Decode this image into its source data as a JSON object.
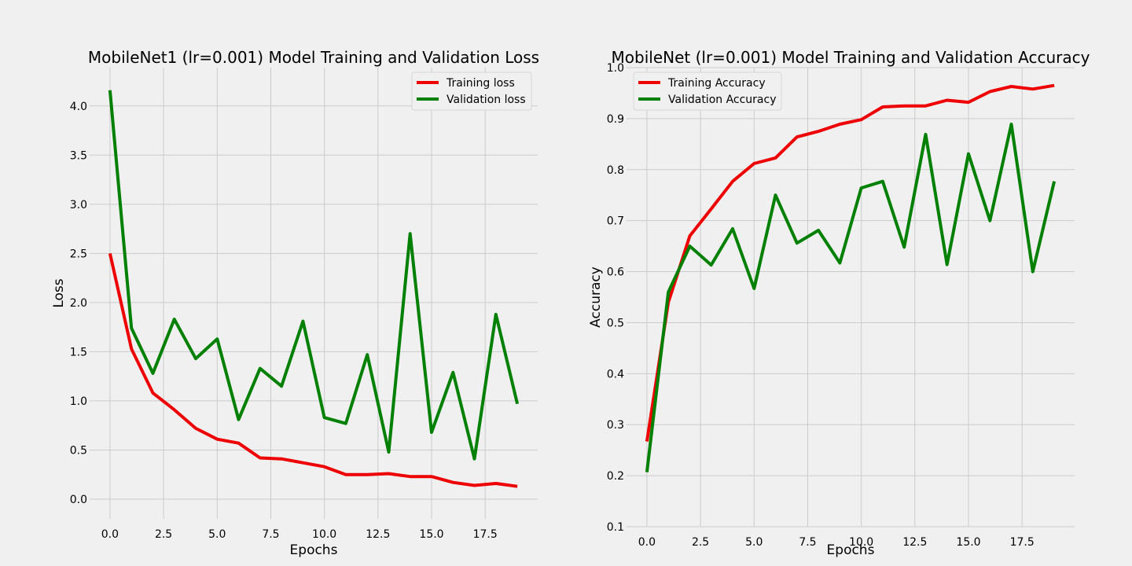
{
  "chart_data": [
    {
      "type": "line",
      "title": "MobileNet1 (lr=0.001) Model Training and Validation Loss",
      "xlabel": "Epochs",
      "ylabel": "Loss",
      "xlim": [
        -0.95,
        19.95
      ],
      "ylim": [
        -0.2,
        4.39
      ],
      "xticks": [
        0,
        2.5,
        5,
        7.5,
        10,
        12.5,
        15,
        17.5
      ],
      "xtick_labels": [
        "0.0",
        "2.5",
        "5.0",
        "7.5",
        "10.0",
        "12.5",
        "15.0",
        "17.5"
      ],
      "yticks": [
        0,
        0.5,
        1,
        1.5,
        2,
        2.5,
        3,
        3.5,
        4
      ],
      "ytick_labels": [
        "0.0",
        "0.5",
        "1.0",
        "1.5",
        "2.0",
        "2.5",
        "3.0",
        "3.5",
        "4.0"
      ],
      "grid": true,
      "legend": "upper-right",
      "x": [
        0,
        1,
        2,
        3,
        4,
        5,
        6,
        7,
        8,
        9,
        10,
        11,
        12,
        13,
        14,
        15,
        16,
        17,
        18,
        19
      ],
      "series": [
        {
          "name": "Training loss",
          "color": "#ee0000",
          "values": [
            2.5,
            1.53,
            1.08,
            0.91,
            0.72,
            0.61,
            0.57,
            0.42,
            0.41,
            0.37,
            0.33,
            0.25,
            0.25,
            0.26,
            0.23,
            0.23,
            0.17,
            0.14,
            0.16,
            0.13
          ]
        },
        {
          "name": "Validation loss",
          "color": "#008000",
          "values": [
            4.16,
            1.74,
            1.28,
            1.83,
            1.43,
            1.63,
            0.81,
            1.33,
            1.15,
            1.81,
            0.83,
            0.77,
            1.47,
            0.48,
            2.7,
            0.68,
            1.29,
            0.41,
            1.88,
            0.97
          ]
        }
      ]
    },
    {
      "type": "line",
      "title": "MobileNet (lr=0.001) Model Training and Validation Accuracy",
      "xlabel": "Epochs",
      "ylabel": "Accuracy",
      "xlim": [
        -0.95,
        19.95
      ],
      "ylim": [
        0.1,
        1.0
      ],
      "xticks": [
        0,
        2.5,
        5,
        7.5,
        10,
        12.5,
        15,
        17.5
      ],
      "xtick_labels": [
        "0.0",
        "2.5",
        "5.0",
        "7.5",
        "10.0",
        "12.5",
        "15.0",
        "17.5"
      ],
      "yticks": [
        0.1,
        0.2,
        0.3,
        0.4,
        0.5,
        0.6,
        0.7,
        0.8,
        0.9,
        1.0
      ],
      "ytick_labels": [
        "0.1",
        "0.2",
        "0.3",
        "0.4",
        "0.5",
        "0.6",
        "0.7",
        "0.8",
        "0.9",
        "1.0"
      ],
      "grid": true,
      "legend": "upper-left",
      "x": [
        0,
        1,
        2,
        3,
        4,
        5,
        6,
        7,
        8,
        9,
        10,
        11,
        12,
        13,
        14,
        15,
        16,
        17,
        18,
        19
      ],
      "series": [
        {
          "name": "Training Accuracy",
          "color": "#ee0000",
          "values": [
            0.267,
            0.54,
            0.67,
            0.723,
            0.777,
            0.812,
            0.823,
            0.864,
            0.875,
            0.889,
            0.898,
            0.923,
            0.925,
            0.925,
            0.936,
            0.932,
            0.953,
            0.963,
            0.958,
            0.965
          ]
        },
        {
          "name": "Validation Accuracy",
          "color": "#008000",
          "values": [
            0.207,
            0.56,
            0.65,
            0.613,
            0.684,
            0.567,
            0.75,
            0.656,
            0.681,
            0.617,
            0.764,
            0.777,
            0.648,
            0.869,
            0.614,
            0.831,
            0.7,
            0.889,
            0.6,
            0.777
          ]
        }
      ]
    }
  ]
}
